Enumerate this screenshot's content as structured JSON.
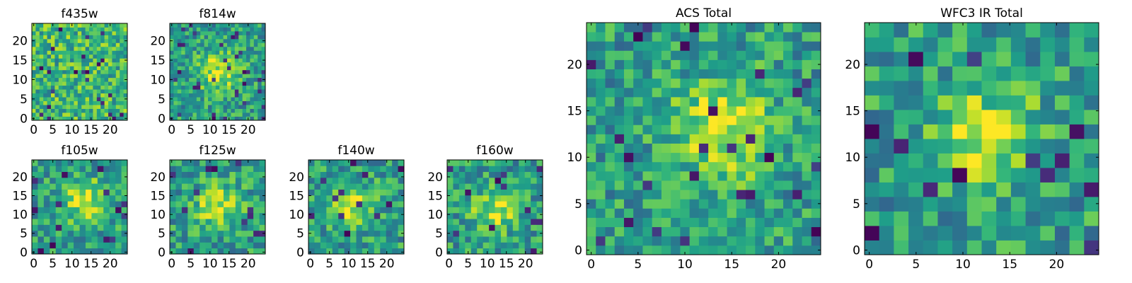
{
  "figure": {
    "colormap": "viridis",
    "colormap_stops": [
      "#440154",
      "#482878",
      "#3e4989",
      "#31688e",
      "#26828e",
      "#1f9e89",
      "#35b779",
      "#6ece58",
      "#b5de2b",
      "#fde725"
    ],
    "frame_color": "#000000",
    "background": "#ffffff"
  },
  "chart_data": [
    {
      "type": "heatmap",
      "title": "f435w",
      "grid": [
        25,
        25
      ],
      "xticks": [
        0,
        5,
        10,
        15,
        20
      ],
      "yticks": [
        0,
        5,
        10,
        15,
        20
      ],
      "xlim": [
        -0.5,
        24.5
      ],
      "ylim": [
        -0.5,
        24.5
      ],
      "description": "noisy field, mostly green-yellow with scattered dark pixels"
    },
    {
      "type": "heatmap",
      "title": "f814w",
      "grid": [
        25,
        25
      ],
      "xticks": [
        0,
        5,
        10,
        15,
        20
      ],
      "yticks": [
        0,
        5,
        10,
        15,
        20
      ],
      "xlim": [
        -0.5,
        24.5
      ],
      "ylim": [
        -0.5,
        24.5
      ],
      "peak": [
        12,
        12
      ]
    },
    {
      "type": "heatmap",
      "title": "f105w",
      "grid": [
        16,
        16
      ],
      "xticks": [
        0,
        5,
        10,
        15,
        20
      ],
      "yticks": [
        0,
        5,
        10,
        15,
        20
      ],
      "xlim": [
        -0.5,
        24.5
      ],
      "ylim": [
        -0.5,
        24.5
      ],
      "peak": [
        13,
        14
      ]
    },
    {
      "type": "heatmap",
      "title": "f125w",
      "grid": [
        16,
        16
      ],
      "xticks": [
        0,
        5,
        10,
        15,
        20
      ],
      "yticks": [
        0,
        5,
        10,
        15,
        20
      ],
      "xlim": [
        -0.5,
        24.5
      ],
      "ylim": [
        -0.5,
        24.5
      ],
      "peak": [
        12,
        12
      ]
    },
    {
      "type": "heatmap",
      "title": "f140w",
      "grid": [
        16,
        16
      ],
      "xticks": [
        0,
        5,
        10,
        15,
        20
      ],
      "yticks": [
        0,
        5,
        10,
        15,
        20
      ],
      "xlim": [
        -0.5,
        24.5
      ],
      "ylim": [
        -0.5,
        24.5
      ],
      "peak": [
        11,
        12
      ]
    },
    {
      "type": "heatmap",
      "title": "f160w",
      "grid": [
        16,
        16
      ],
      "xticks": [
        0,
        5,
        10,
        15,
        20
      ],
      "yticks": [
        0,
        5,
        10,
        15,
        20
      ],
      "xlim": [
        -0.5,
        24.5
      ],
      "ylim": [
        -0.5,
        24.5
      ],
      "peak": [
        12,
        11
      ]
    },
    {
      "type": "heatmap",
      "title": "ACS Total",
      "grid": [
        25,
        25
      ],
      "xticks": [
        0,
        5,
        10,
        15,
        20
      ],
      "yticks": [
        0,
        5,
        10,
        15,
        20
      ],
      "xlim": [
        -0.5,
        24.5
      ],
      "ylim": [
        -0.5,
        24.5
      ],
      "peak": [
        14,
        13
      ]
    },
    {
      "type": "heatmap",
      "title": "WFC3 IR Total",
      "grid": [
        16,
        16
      ],
      "xticks": [
        0,
        5,
        10,
        15,
        20
      ],
      "yticks": [
        0,
        5,
        10,
        15,
        20
      ],
      "xlim": [
        -0.5,
        24.5
      ],
      "ylim": [
        -0.5,
        24.5
      ],
      "peak": [
        13,
        12
      ]
    }
  ]
}
